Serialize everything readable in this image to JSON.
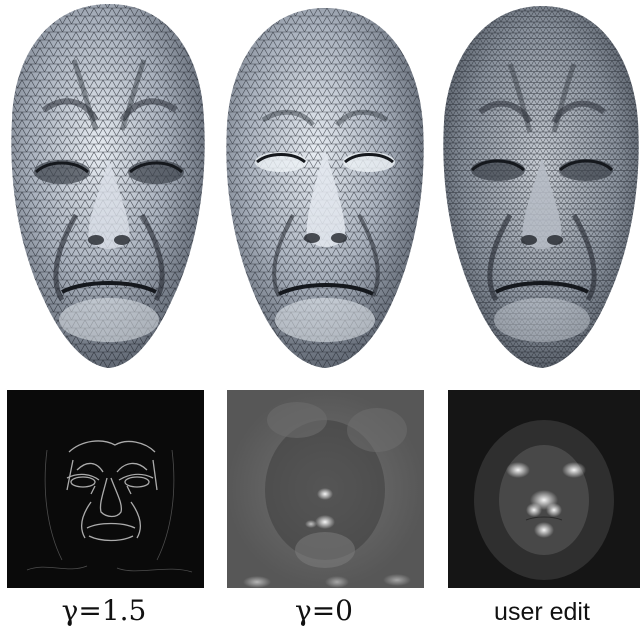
{
  "figure": {
    "panels": [
      {
        "caption": "γ=1.5",
        "style": "math"
      },
      {
        "caption": "γ=0",
        "style": "math"
      },
      {
        "caption": "user edit",
        "style": "text"
      }
    ]
  },
  "colors": {
    "mesh_fill": "#b9c0cb",
    "mesh_line": "#1e222a",
    "map_bg": "#0c0c0c",
    "map_glow": "#ffffff"
  }
}
